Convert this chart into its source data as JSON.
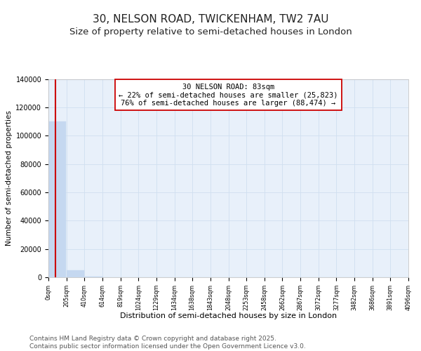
{
  "title": "30, NELSON ROAD, TWICKENHAM, TW2 7AU",
  "subtitle": "Size of property relative to semi-detached houses in London",
  "xlabel": "Distribution of semi-detached houses by size in London",
  "ylabel": "Number of semi-detached properties",
  "annotation_text": "30 NELSON ROAD: 83sqm\n← 22% of semi-detached houses are smaller (25,823)\n76% of semi-detached houses are larger (88,474) →",
  "bar_edges": [
    0,
    205,
    410,
    614,
    819,
    1024,
    1229,
    1434,
    1638,
    1843,
    2048,
    2253,
    2458,
    2662,
    2867,
    3072,
    3277,
    3482,
    3686,
    3891,
    4096
  ],
  "bar_heights": [
    110000,
    5000,
    400,
    100,
    50,
    30,
    20,
    15,
    10,
    7,
    5,
    4,
    3,
    2,
    2,
    1,
    1,
    1,
    1,
    1
  ],
  "bar_color": "#c5d8f0",
  "bar_edge_color": "#c5d8f0",
  "vline_color": "#cc0000",
  "vline_x": 83,
  "grid_color": "#d0dff0",
  "background_color": "#e8f0fa",
  "ylim": [
    0,
    140000
  ],
  "yticks": [
    0,
    20000,
    40000,
    60000,
    80000,
    100000,
    120000,
    140000
  ],
  "tick_labels": [
    "0sqm",
    "205sqm",
    "410sqm",
    "614sqm",
    "819sqm",
    "1024sqm",
    "1229sqm",
    "1434sqm",
    "1638sqm",
    "1843sqm",
    "2048sqm",
    "2253sqm",
    "2458sqm",
    "2662sqm",
    "2867sqm",
    "3072sqm",
    "3277sqm",
    "3482sqm",
    "3686sqm",
    "3891sqm",
    "4096sqm"
  ],
  "footer": "Contains HM Land Registry data © Crown copyright and database right 2025.\nContains public sector information licensed under the Open Government Licence v3.0.",
  "title_fontsize": 11,
  "subtitle_fontsize": 9.5,
  "annotation_fontsize": 7.5,
  "footer_fontsize": 6.5,
  "ylabel_fontsize": 7.5,
  "xlabel_fontsize": 8,
  "ytick_fontsize": 7,
  "xtick_fontsize": 5.8
}
